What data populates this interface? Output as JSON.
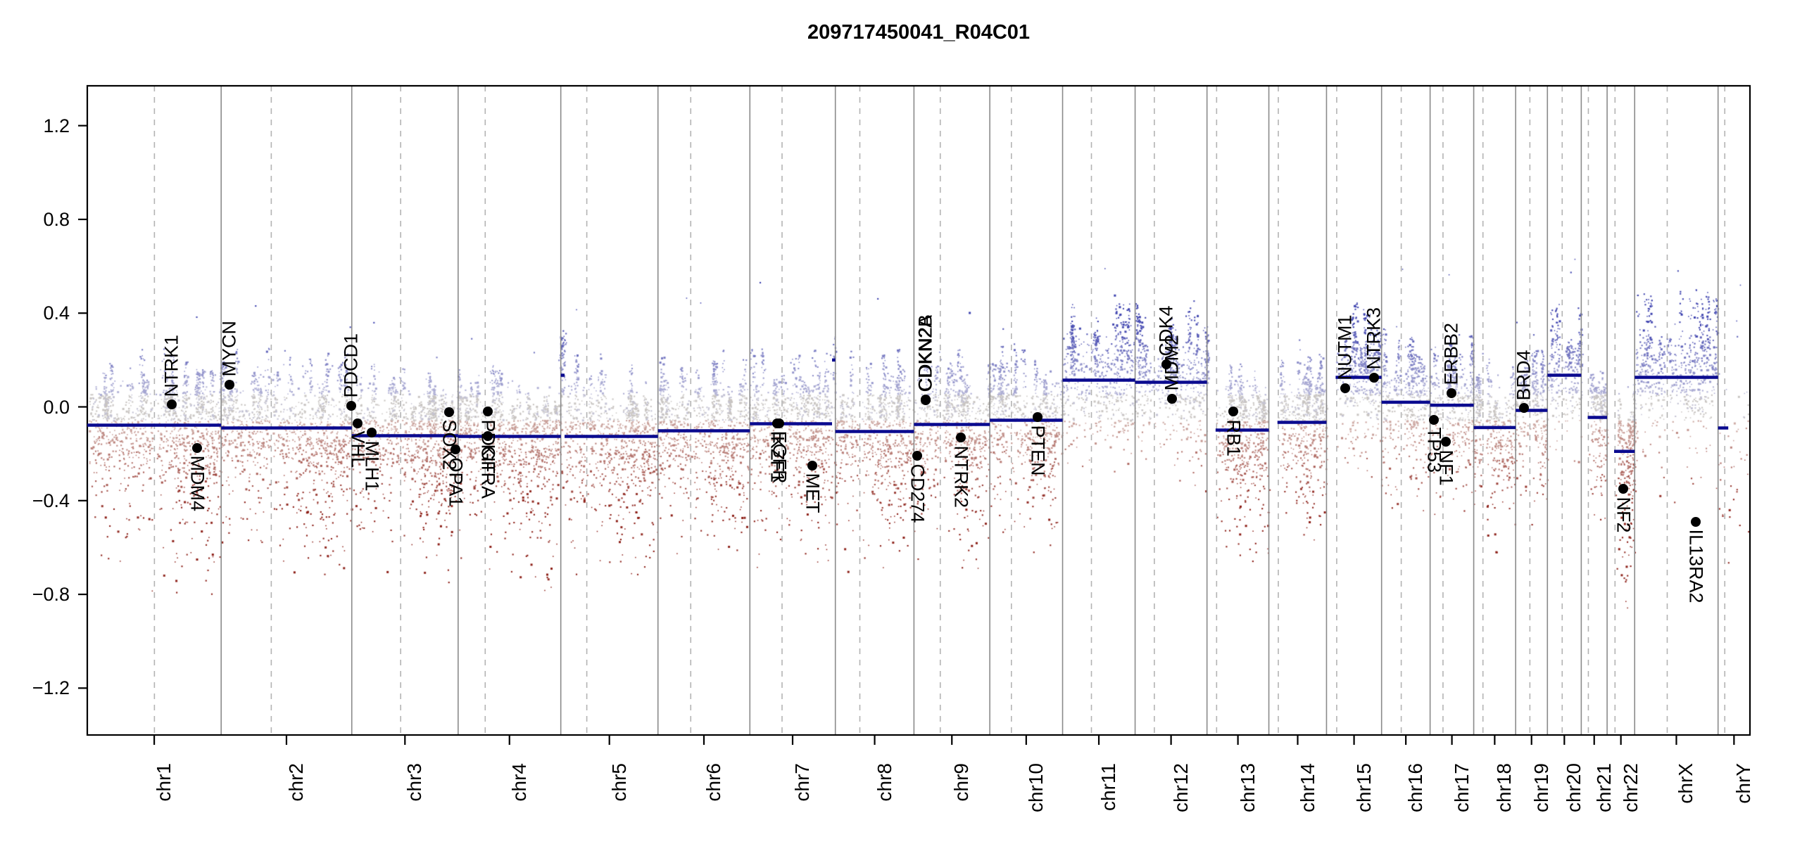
{
  "title": "209717450041_R04C01",
  "colors": {
    "segment": "#0a0a8f",
    "boundary_line": "#8a8a8a",
    "centromere_line": "#b3b3b3",
    "box": "#000000",
    "gain_point": "#3a3fae",
    "neutral_point": "#c7c4c1",
    "loss_point": "#8c1d15"
  },
  "chart_data": {
    "type": "scatter",
    "title": "209717450041_R04C01",
    "xlabel": "",
    "ylabel": "",
    "ylim": [
      -1.4,
      1.37
    ],
    "grid": "chromosome boundaries solid, centromeres dashed",
    "y_axis": {
      "ticks": [
        {
          "label": "1.2",
          "value": 1.2
        },
        {
          "label": "0.8",
          "value": 0.8
        },
        {
          "label": "0.4",
          "value": 0.4
        },
        {
          "label": "0.0",
          "value": 0.0
        },
        {
          "label": "−0.4",
          "value": -0.4
        },
        {
          "label": "−0.8",
          "value": -0.8
        },
        {
          "label": "−1.2",
          "value": -1.2
        }
      ]
    },
    "chromosomes": [
      {
        "name": "chr1",
        "size_mb": 249.25,
        "centromere_mb": 125.0,
        "acro_start_mb": 0,
        "segments": [
          {
            "start_mb": 0,
            "end_mb": 249.25,
            "value": -0.078
          }
        ],
        "col_up": 0.3,
        "red_down": 0.5,
        "red_density": 1.1
      },
      {
        "name": "chr2",
        "size_mb": 243.2,
        "centromere_mb": 93.3,
        "acro_start_mb": 0,
        "segments": [
          {
            "start_mb": 0,
            "end_mb": 243.2,
            "value": -0.09
          }
        ],
        "col_up": 0.33,
        "red_down": 0.45,
        "red_density": 1.0
      },
      {
        "name": "chr3",
        "size_mb": 198.02,
        "centromere_mb": 91.0,
        "acro_start_mb": 0,
        "segments": [
          {
            "start_mb": 0,
            "end_mb": 198.02,
            "value": -0.123
          }
        ],
        "col_up": 0.3,
        "red_down": 0.42,
        "red_density": 1.0
      },
      {
        "name": "chr4",
        "size_mb": 191.15,
        "centromere_mb": 50.4,
        "acro_start_mb": 0,
        "segments": [
          {
            "start_mb": 0,
            "end_mb": 191.15,
            "value": -0.126
          }
        ],
        "col_up": 0.28,
        "red_down": 0.45,
        "red_density": 1.0
      },
      {
        "name": "chr5",
        "size_mb": 180.92,
        "centromere_mb": 48.4,
        "acro_start_mb": 0,
        "segments": [
          {
            "start_mb": 0,
            "end_mb": 7,
            "value": 0.135
          },
          {
            "start_mb": 7,
            "end_mb": 180.92,
            "value": -0.126
          }
        ],
        "col_up": 0.34,
        "red_down": 0.42,
        "red_density": 1.0
      },
      {
        "name": "chr6",
        "size_mb": 171.12,
        "centromere_mb": 61.0,
        "acro_start_mb": 0,
        "segments": [
          {
            "start_mb": 0,
            "end_mb": 171.12,
            "value": -0.102
          }
        ],
        "col_up": 0.33,
        "red_down": 0.4,
        "red_density": 1.0
      },
      {
        "name": "chr7",
        "size_mb": 159.14,
        "centromere_mb": 59.9,
        "acro_start_mb": 0,
        "segments": [
          {
            "start_mb": 0,
            "end_mb": 153,
            "value": -0.072
          },
          {
            "start_mb": 153,
            "end_mb": 159.14,
            "value": 0.2
          }
        ],
        "col_up": 0.32,
        "red_down": 0.42,
        "red_density": 1.0
      },
      {
        "name": "chr8",
        "size_mb": 146.36,
        "centromere_mb": 45.6,
        "acro_start_mb": 0,
        "segments": [
          {
            "start_mb": 0,
            "end_mb": 146.36,
            "value": -0.105
          }
        ],
        "col_up": 0.34,
        "red_down": 0.4,
        "red_density": 1.0
      },
      {
        "name": "chr9",
        "size_mb": 141.21,
        "centromere_mb": 49.0,
        "acro_start_mb": 0,
        "segments": [
          {
            "start_mb": 0,
            "end_mb": 141.21,
            "value": -0.075
          }
        ],
        "col_up": 0.3,
        "red_down": 0.45,
        "red_density": 1.0
      },
      {
        "name": "chr10",
        "size_mb": 135.53,
        "centromere_mb": 40.2,
        "acro_start_mb": 0,
        "segments": [
          {
            "start_mb": 0,
            "end_mb": 135.53,
            "value": -0.057
          }
        ],
        "col_up": 0.3,
        "red_down": 0.4,
        "red_density": 1.0
      },
      {
        "name": "chr11",
        "size_mb": 135.01,
        "centromere_mb": 53.7,
        "acro_start_mb": 0,
        "segments": [
          {
            "start_mb": 0,
            "end_mb": 135.01,
            "value": 0.114
          }
        ],
        "col_up": 0.3,
        "red_down": 0.3,
        "red_density": 0.7
      },
      {
        "name": "chr12",
        "size_mb": 133.85,
        "centromere_mb": 35.8,
        "acro_start_mb": 0,
        "segments": [
          {
            "start_mb": 0,
            "end_mb": 133.85,
            "value": 0.105
          }
        ],
        "col_up": 0.33,
        "red_down": 0.3,
        "red_density": 0.7
      },
      {
        "name": "chr13",
        "size_mb": 115.17,
        "centromere_mb": 17.9,
        "acro_start_mb": 16,
        "segments": [
          {
            "start_mb": 16,
            "end_mb": 115.17,
            "value": -0.099
          }
        ],
        "col_up": 0.26,
        "red_down": 0.42,
        "red_density": 1.0
      },
      {
        "name": "chr14",
        "size_mb": 107.35,
        "centromere_mb": 17.6,
        "acro_start_mb": 16,
        "segments": [
          {
            "start_mb": 16,
            "end_mb": 107.35,
            "value": -0.066
          }
        ],
        "col_up": 0.28,
        "red_down": 0.38,
        "red_density": 0.9
      },
      {
        "name": "chr15",
        "size_mb": 102.53,
        "centromere_mb": 19.0,
        "acro_start_mb": 17,
        "segments": [
          {
            "start_mb": 17,
            "end_mb": 102.53,
            "value": 0.126
          }
        ],
        "col_up": 0.3,
        "red_down": 0.3,
        "red_density": 0.7
      },
      {
        "name": "chr16",
        "size_mb": 90.35,
        "centromere_mb": 36.6,
        "acro_start_mb": 0,
        "segments": [
          {
            "start_mb": 0,
            "end_mb": 90.35,
            "value": 0.02
          }
        ],
        "col_up": 0.3,
        "red_down": 0.35,
        "red_density": 0.8
      },
      {
        "name": "chr17",
        "size_mb": 81.2,
        "centromere_mb": 24.0,
        "acro_start_mb": 0,
        "segments": [
          {
            "start_mb": 0,
            "end_mb": 81.2,
            "value": 0.007
          }
        ],
        "col_up": 0.28,
        "red_down": 0.35,
        "red_density": 0.8
      },
      {
        "name": "chr18",
        "size_mb": 78.08,
        "centromere_mb": 17.2,
        "acro_start_mb": 0,
        "segments": [
          {
            "start_mb": 0,
            "end_mb": 78.08,
            "value": -0.088
          }
        ],
        "col_up": 0.26,
        "red_down": 0.4,
        "red_density": 0.9
      },
      {
        "name": "chr19",
        "size_mb": 59.13,
        "centromere_mb": 26.5,
        "acro_start_mb": 0,
        "segments": [
          {
            "start_mb": 0,
            "end_mb": 59.13,
            "value": -0.015
          }
        ],
        "col_up": 0.3,
        "red_down": 0.35,
        "red_density": 0.8
      },
      {
        "name": "chr20",
        "size_mb": 63.03,
        "centromere_mb": 27.5,
        "acro_start_mb": 0,
        "segments": [
          {
            "start_mb": 0,
            "end_mb": 63.03,
            "value": 0.135
          }
        ],
        "col_up": 0.3,
        "red_down": 0.25,
        "red_density": 0.6
      },
      {
        "name": "chr21",
        "size_mb": 48.13,
        "centromere_mb": 13.2,
        "acro_start_mb": 12,
        "segments": [
          {
            "start_mb": 12,
            "end_mb": 48.13,
            "value": -0.045
          }
        ],
        "col_up": 0.24,
        "red_down": 0.35,
        "red_density": 0.8
      },
      {
        "name": "chr22",
        "size_mb": 51.3,
        "centromere_mb": 14.7,
        "acro_start_mb": 13,
        "segments": [
          {
            "start_mb": 13,
            "end_mb": 51.3,
            "value": -0.19
          }
        ],
        "col_up": 0.26,
        "red_down": 0.5,
        "red_density": 1.3
      },
      {
        "name": "chrX",
        "size_mb": 155.27,
        "centromere_mb": 60.6,
        "acro_start_mb": 0,
        "segments": [
          {
            "start_mb": 0,
            "end_mb": 155.27,
            "value": 0.126
          }
        ],
        "col_up": 0.35,
        "red_down": 0.45,
        "red_density": 0.5
      },
      {
        "name": "chrY",
        "size_mb": 59.37,
        "centromere_mb": 12.5,
        "acro_start_mb": 0,
        "sparse": true,
        "segments": [
          {
            "start_mb": 0,
            "end_mb": 19,
            "value": -0.09
          }
        ],
        "col_up": 0.1,
        "red_down": 0.45,
        "red_density": 0.3
      }
    ],
    "genes": [
      {
        "name": "NTRK1",
        "chrom": "chr1",
        "pos_mb": 156.8,
        "value": 0.01,
        "label": "above"
      },
      {
        "name": "MDM4",
        "chrom": "chr1",
        "pos_mb": 204.5,
        "value": -0.175,
        "label": "below"
      },
      {
        "name": "MYCN",
        "chrom": "chr2",
        "pos_mb": 16.1,
        "value": 0.095,
        "label": "above"
      },
      {
        "name": "PDCD1",
        "chrom": "chr2",
        "pos_mb": 242.0,
        "value": 0.006,
        "label": "above"
      },
      {
        "name": "VHL",
        "chrom": "chr3",
        "pos_mb": 10.2,
        "value": -0.07,
        "label": "below"
      },
      {
        "name": "MLH1",
        "chrom": "chr3",
        "pos_mb": 37.0,
        "value": -0.11,
        "label": "below"
      },
      {
        "name": "SOX2",
        "chrom": "chr3",
        "pos_mb": 181.4,
        "value": -0.022,
        "label": "below"
      },
      {
        "name": "OPA1",
        "chrom": "chr3",
        "pos_mb": 193.3,
        "value": -0.183,
        "label": "below"
      },
      {
        "name": "PDGFRA",
        "chrom": "chr4",
        "pos_mb": 55.1,
        "value": -0.02,
        "label": "below"
      },
      {
        "name": "KIT",
        "chrom": "chr4",
        "pos_mb": 55.5,
        "value": -0.125,
        "label": "below"
      },
      {
        "name": "IKZF1",
        "chrom": "chr7",
        "pos_mb": 50.3,
        "value": -0.07,
        "label": "below"
      },
      {
        "name": "EGFR",
        "chrom": "chr7",
        "pos_mb": 55.0,
        "value": -0.07,
        "label": "below"
      },
      {
        "name": "MET",
        "chrom": "chr7",
        "pos_mb": 116.3,
        "value": -0.25,
        "label": "below"
      },
      {
        "name": "CD274",
        "chrom": "chr9",
        "pos_mb": 5.4,
        "value": -0.21,
        "label": "below"
      },
      {
        "name": "CDKN2A",
        "chrom": "chr9",
        "pos_mb": 21.9,
        "value": 0.03,
        "label": "above"
      },
      {
        "name": "CDKN2B",
        "chrom": "chr9",
        "pos_mb": 22.0,
        "value": 0.032,
        "label": "above"
      },
      {
        "name": "NTRK2",
        "chrom": "chr9",
        "pos_mb": 87.3,
        "value": -0.132,
        "label": "below"
      },
      {
        "name": "PTEN",
        "chrom": "chr10",
        "pos_mb": 89.6,
        "value": -0.045,
        "label": "below"
      },
      {
        "name": "CDK4",
        "chrom": "chr12",
        "pos_mb": 58.1,
        "value": 0.183,
        "label": "above"
      },
      {
        "name": "MDM2",
        "chrom": "chr12",
        "pos_mb": 69.2,
        "value": 0.035,
        "label": "above"
      },
      {
        "name": "RB1",
        "chrom": "chr13",
        "pos_mb": 48.9,
        "value": -0.02,
        "label": "below"
      },
      {
        "name": "NUTM1",
        "chrom": "chr15",
        "pos_mb": 34.6,
        "value": 0.08,
        "label": "above"
      },
      {
        "name": "NTRK3",
        "chrom": "chr15",
        "pos_mb": 88.4,
        "value": 0.125,
        "label": "above"
      },
      {
        "name": "TP53",
        "chrom": "chr17",
        "pos_mb": 7.6,
        "value": -0.055,
        "label": "below"
      },
      {
        "name": "NF1",
        "chrom": "chr17",
        "pos_mb": 29.5,
        "value": -0.15,
        "label": "below"
      },
      {
        "name": "ERBB2",
        "chrom": "chr17",
        "pos_mb": 39.7,
        "value": 0.06,
        "label": "above"
      },
      {
        "name": "BRD4",
        "chrom": "chr19",
        "pos_mb": 15.3,
        "value": -0.005,
        "label": "above"
      },
      {
        "name": "NF2",
        "chrom": "chr22",
        "pos_mb": 29.6,
        "value": -0.35,
        "label": "below"
      },
      {
        "name": "IL13RA2",
        "chrom": "chrX",
        "pos_mb": 114.2,
        "value": -0.49,
        "label": "below"
      }
    ]
  }
}
